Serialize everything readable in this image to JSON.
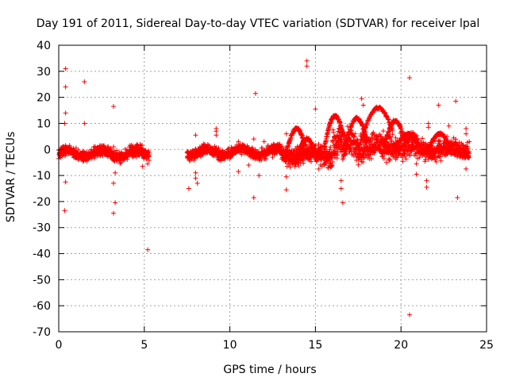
{
  "chart_data": {
    "type": "scatter",
    "title": "Day 191 of 2011, Sidereal Day-to-day VTEC variation (SDTVAR) for receiver lpal",
    "xlabel": "GPS time / hours",
    "ylabel": "SDTVAR / TECUs",
    "xlim": [
      0,
      25
    ],
    "ylim": [
      -70,
      40
    ],
    "xticks": [
      0,
      5,
      10,
      15,
      20,
      25
    ],
    "yticks": [
      -70,
      -60,
      -50,
      -40,
      -30,
      -20,
      -10,
      0,
      10,
      20,
      30,
      40
    ],
    "grid": true,
    "marker": "+",
    "series_color": "#ff0000",
    "band_segments": [
      {
        "x": [
          0.0,
          5.3
        ],
        "y_center": -1.5,
        "y_spread": 3.0
      },
      {
        "x": [
          7.5,
          13.0
        ],
        "y_center": -1.0,
        "y_spread": 3.0
      },
      {
        "x": [
          13.0,
          16.0
        ],
        "y_center": -2.0,
        "y_spread": 5.0
      },
      {
        "x": [
          16.0,
          18.5
        ],
        "y_center": 2.0,
        "y_spread": 8.0
      },
      {
        "x": [
          18.5,
          21.0
        ],
        "y_center": 1.0,
        "y_spread": 7.0
      },
      {
        "x": [
          21.0,
          24.0
        ],
        "y_center": 0.0,
        "y_spread": 5.0
      }
    ],
    "outliers": [
      {
        "x": 0.4,
        "y": 31
      },
      {
        "x": 0.4,
        "y": 24
      },
      {
        "x": 0.4,
        "y": 14
      },
      {
        "x": 0.35,
        "y": 10
      },
      {
        "x": 0.4,
        "y": -12.5
      },
      {
        "x": 0.35,
        "y": -23.5
      },
      {
        "x": 1.5,
        "y": 26
      },
      {
        "x": 1.5,
        "y": 10
      },
      {
        "x": 3.2,
        "y": 16.5
      },
      {
        "x": 3.2,
        "y": 1
      },
      {
        "x": 3.2,
        "y": -13
      },
      {
        "x": 3.3,
        "y": -20.5
      },
      {
        "x": 3.2,
        "y": -24.5
      },
      {
        "x": 3.3,
        "y": -9
      },
      {
        "x": 4.9,
        "y": -6.5
      },
      {
        "x": 5.2,
        "y": -5.5
      },
      {
        "x": 5.2,
        "y": -38.5
      },
      {
        "x": 7.6,
        "y": -15
      },
      {
        "x": 8.0,
        "y": 5.5
      },
      {
        "x": 8.0,
        "y": -9
      },
      {
        "x": 8.0,
        "y": -11
      },
      {
        "x": 8.1,
        "y": -13
      },
      {
        "x": 9.2,
        "y": 8
      },
      {
        "x": 9.2,
        "y": 7
      },
      {
        "x": 9.2,
        "y": 5.5
      },
      {
        "x": 10.5,
        "y": 3
      },
      {
        "x": 10.5,
        "y": -8.5
      },
      {
        "x": 11.1,
        "y": -6
      },
      {
        "x": 11.4,
        "y": -18.5
      },
      {
        "x": 11.5,
        "y": 21.5
      },
      {
        "x": 11.4,
        "y": 4
      },
      {
        "x": 11.7,
        "y": -10
      },
      {
        "x": 12.0,
        "y": 3
      },
      {
        "x": 12.5,
        "y": -3
      },
      {
        "x": 13.3,
        "y": -15.5
      },
      {
        "x": 13.3,
        "y": 6
      },
      {
        "x": 13.3,
        "y": -10.5
      },
      {
        "x": 14.5,
        "y": 34
      },
      {
        "x": 14.5,
        "y": 32
      },
      {
        "x": 15.0,
        "y": 15.5
      },
      {
        "x": 15.2,
        "y": -7.5
      },
      {
        "x": 16.5,
        "y": -12
      },
      {
        "x": 16.5,
        "y": -15
      },
      {
        "x": 16.6,
        "y": -20.5
      },
      {
        "x": 17.7,
        "y": 19.5
      },
      {
        "x": 17.8,
        "y": 17
      },
      {
        "x": 20.5,
        "y": 27.5
      },
      {
        "x": 20.5,
        "y": -63.5
      },
      {
        "x": 20.9,
        "y": -9.5
      },
      {
        "x": 20.9,
        "y": -5.5
      },
      {
        "x": 21.6,
        "y": 10
      },
      {
        "x": 21.6,
        "y": 8.5
      },
      {
        "x": 21.5,
        "y": -12
      },
      {
        "x": 21.5,
        "y": -14.5
      },
      {
        "x": 22.2,
        "y": 17
      },
      {
        "x": 22.8,
        "y": 9
      },
      {
        "x": 23.2,
        "y": 18.5
      },
      {
        "x": 23.3,
        "y": -18.5
      },
      {
        "x": 23.8,
        "y": 8
      },
      {
        "x": 23.8,
        "y": 6
      },
      {
        "x": 23.8,
        "y": -7.5
      }
    ],
    "arcs": [
      {
        "x0": 13.2,
        "x1": 14.4,
        "y0": -4,
        "y1": 8
      },
      {
        "x0": 13.8,
        "x1": 15.0,
        "y0": -6,
        "y1": 4
      },
      {
        "x0": 15.5,
        "x1": 16.6,
        "y0": 0,
        "y1": 13
      },
      {
        "x0": 16.6,
        "x1": 18.0,
        "y0": -4,
        "y1": 12
      },
      {
        "x0": 17.5,
        "x1": 19.5,
        "y0": 0,
        "y1": 16
      },
      {
        "x0": 18.9,
        "x1": 20.2,
        "y0": -3,
        "y1": 11
      },
      {
        "x0": 19.5,
        "x1": 21.0,
        "y0": -2,
        "y1": 6
      },
      {
        "x0": 21.5,
        "x1": 22.8,
        "y0": -2,
        "y1": 6
      }
    ]
  }
}
